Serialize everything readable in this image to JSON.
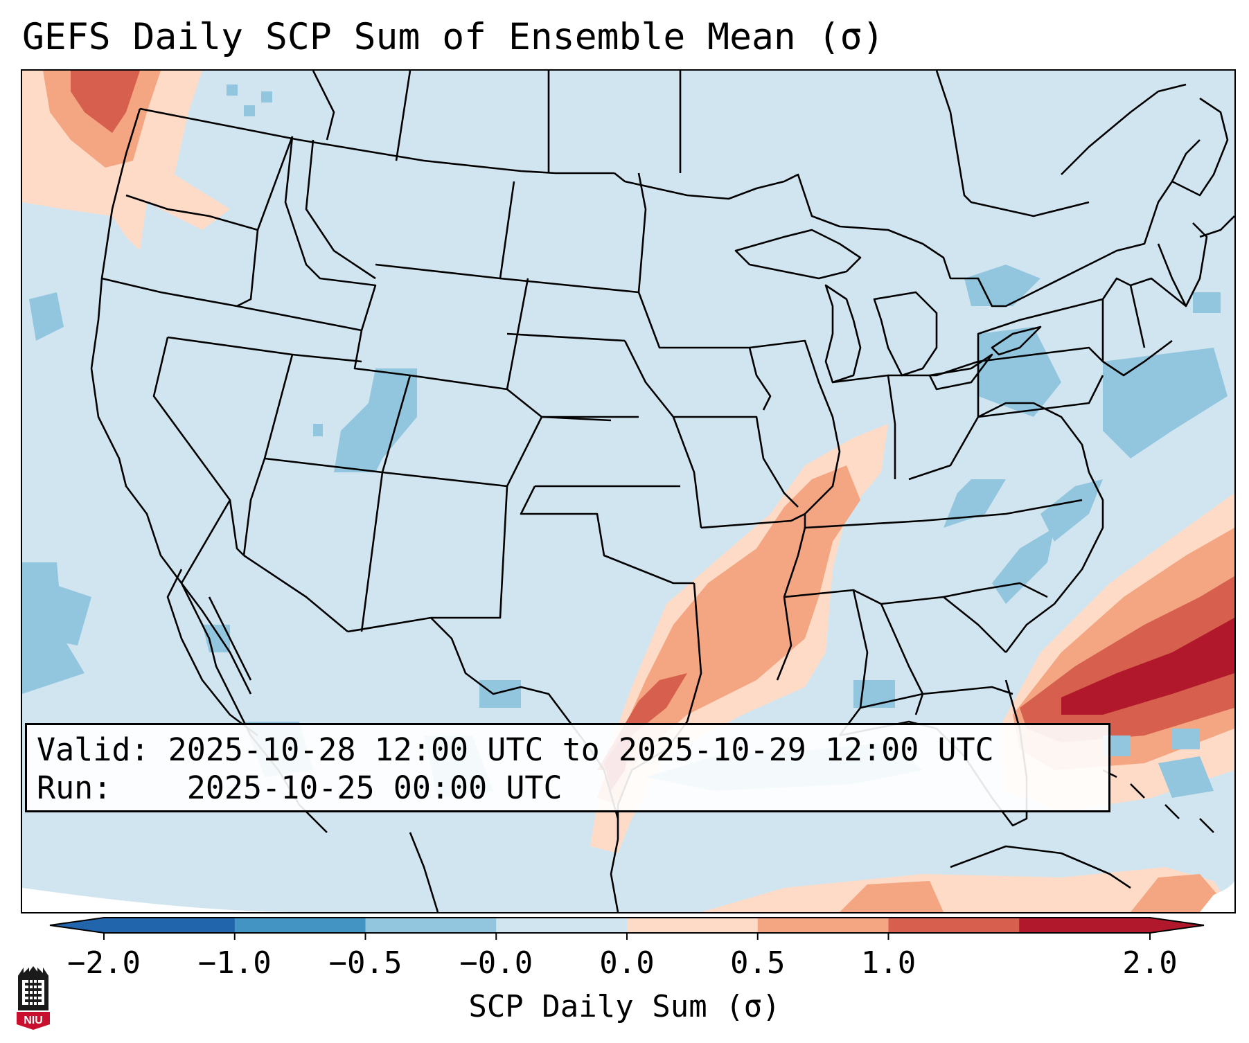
{
  "title": "GEFS Daily SCP Sum of Ensemble Mean (σ)",
  "info": {
    "valid_label": "Valid:",
    "valid_text": "2025-10-28 12:00 UTC to 2025-10-29 12:00 UTC",
    "run_label": "Run:",
    "run_text": "2025-10-25 00:00 UTC"
  },
  "colorbar": {
    "label": "SCP Daily Sum (σ)",
    "ticks": [
      "−2.0",
      "−1.0",
      "−0.5",
      "−0.0",
      "0.0",
      "0.5",
      "1.0",
      "2.0"
    ],
    "colors": [
      "#2166ac",
      "#4393c3",
      "#92c5de",
      "#d1e5f0",
      "#fddbc7",
      "#f4a582",
      "#d6604d",
      "#b2182b"
    ]
  },
  "logo": {
    "text": "NIU",
    "icon": "niu-castle-logo-icon"
  }
}
